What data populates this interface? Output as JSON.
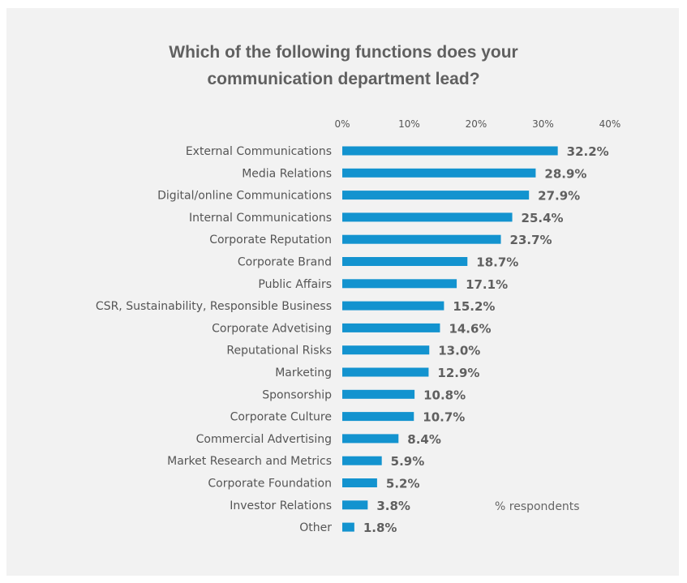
{
  "chart_data": {
    "type": "bar",
    "orientation": "horizontal",
    "title_lines": [
      "Which of the following functions does your",
      "communication department lead?"
    ],
    "categories": [
      "External Communications",
      "Media Relations",
      "Digital/online Communications",
      "Internal Communications",
      "Corporate Reputation",
      "Corporate Brand",
      "Public Affairs",
      "CSR, Sustainability, Responsible Business",
      "Corporate Advetising",
      "Reputational Risks",
      "Marketing",
      "Sponsorship",
      "Corporate Culture",
      "Commercial Advertising",
      "Market Research and Metrics",
      "Corporate Foundation",
      "Investor Relations",
      "Other"
    ],
    "values": [
      32.2,
      28.9,
      27.9,
      25.4,
      23.7,
      18.7,
      17.1,
      15.2,
      14.6,
      13.0,
      12.9,
      10.8,
      10.7,
      8.4,
      5.9,
      5.2,
      3.8,
      1.8
    ],
    "value_labels": [
      "32.2%",
      "28.9%",
      "27.9%",
      "25.4%",
      "23.7%",
      "18.7%",
      "17.1%",
      "15.2%",
      "14.6%",
      "13.0%",
      "12.9%",
      "10.8%",
      "10.7%",
      "8.4%",
      "5.9%",
      "5.2%",
      "3.8%",
      "1.8%"
    ],
    "xlim": [
      0,
      40
    ],
    "x_ticks": [
      0,
      10,
      20,
      30,
      40
    ],
    "x_tick_labels": [
      "0%",
      "10%",
      "20%",
      "30%",
      "40%"
    ],
    "axis_position": "top",
    "grid": false,
    "legend": "none",
    "annotation": "% respondents",
    "bar_color": "#1393cf",
    "background_color": "#f2f2f2"
  }
}
